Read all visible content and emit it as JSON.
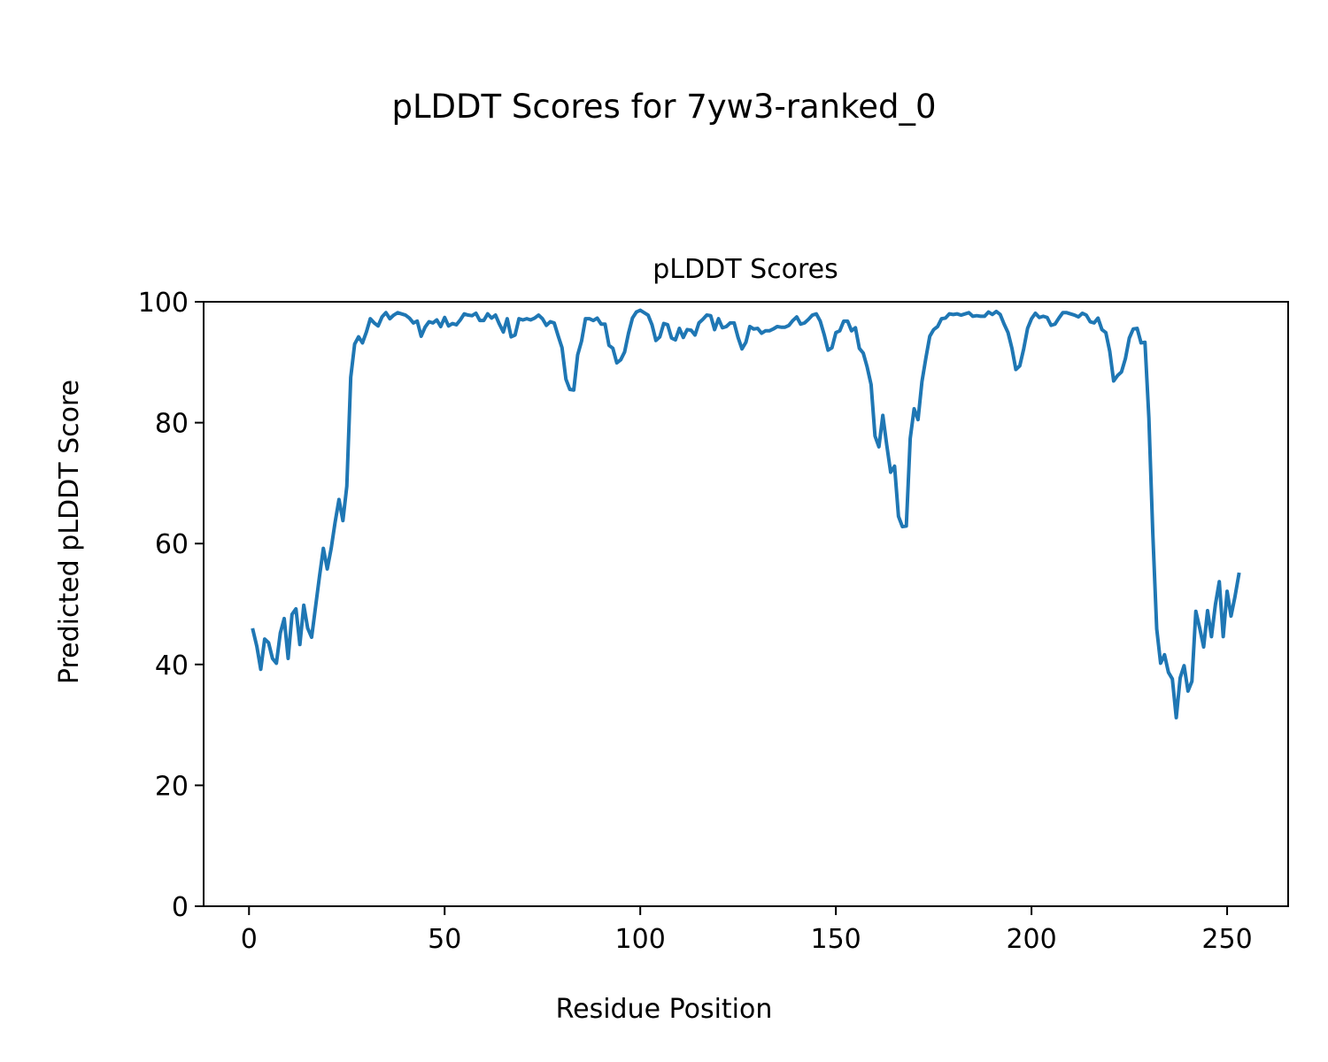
{
  "figure_title": "pLDDT Scores for 7yw3-ranked_0",
  "chart_data": {
    "type": "line",
    "title": "pLDDT Scores",
    "xlabel": "Residue Position",
    "ylabel": "Predicted pLDDT Score",
    "xlim": [
      -11.6,
      265.6
    ],
    "ylim": [
      0,
      100
    ],
    "xticks": [
      0,
      50,
      100,
      150,
      200,
      250
    ],
    "yticks": [
      0,
      20,
      40,
      60,
      80,
      100
    ],
    "grid": false,
    "line_color": "#1f77b4",
    "series": [
      {
        "x_start": 1,
        "values": [
          45.7,
          43.0,
          39.2,
          44.2,
          43.6,
          41.0,
          40.2,
          45.2,
          47.6,
          41.0,
          48.3,
          49.2,
          43.3,
          49.8,
          46.0,
          44.5,
          49.5,
          54.5,
          59.2,
          55.8,
          59.2,
          63.5,
          67.3,
          63.8,
          69.5,
          87.5,
          93.0,
          94.2,
          93.2,
          95.0,
          97.2,
          96.5,
          96.0,
          97.5,
          98.2,
          97.2,
          97.8,
          98.2,
          98.0,
          97.8,
          97.3,
          96.5,
          96.8,
          94.3,
          95.8,
          96.7,
          96.5,
          97.0,
          95.9,
          97.4,
          96.0,
          96.4,
          96.2,
          97.0,
          98.0,
          97.8,
          97.7,
          98.1,
          96.9,
          96.9,
          98.0,
          97.3,
          97.8,
          96.3,
          95.0,
          97.2,
          94.2,
          94.5,
          97.2,
          97.0,
          97.2,
          97.0,
          97.3,
          97.8,
          97.2,
          96.1,
          96.7,
          96.5,
          94.4,
          92.4,
          87.2,
          85.5,
          85.4,
          91.2,
          93.5,
          97.2,
          97.2,
          96.9,
          97.3,
          96.3,
          96.3,
          92.8,
          92.3,
          89.9,
          90.4,
          91.7,
          94.8,
          97.3,
          98.3,
          98.6,
          98.2,
          97.8,
          96.2,
          93.6,
          94.2,
          96.4,
          96.2,
          94.0,
          93.7,
          95.6,
          94.1,
          95.4,
          95.3,
          94.5,
          96.5,
          97.1,
          97.8,
          97.7,
          95.4,
          97.2,
          95.7,
          95.9,
          96.5,
          96.5,
          94.1,
          92.2,
          93.3,
          95.9,
          95.5,
          95.6,
          94.8,
          95.2,
          95.2,
          95.5,
          95.9,
          95.8,
          95.8,
          96.1,
          96.9,
          97.5,
          96.3,
          96.5,
          97.1,
          97.8,
          98.0,
          96.8,
          94.6,
          92.0,
          92.4,
          94.9,
          95.2,
          96.8,
          96.8,
          95.2,
          95.7,
          92.3,
          91.5,
          89.2,
          86.3,
          77.8,
          76.0,
          81.2,
          76.3,
          71.8,
          72.8,
          64.5,
          62.8,
          62.9,
          77.4,
          82.3,
          80.5,
          86.8,
          90.7,
          94.3,
          95.4,
          95.9,
          97.2,
          97.3,
          98.0,
          97.9,
          98.0,
          97.8,
          98.0,
          98.2,
          97.6,
          97.7,
          97.6,
          97.6,
          98.3,
          97.9,
          98.4,
          97.9,
          96.3,
          94.9,
          92.3,
          88.8,
          89.4,
          92.2,
          95.6,
          97.2,
          98.1,
          97.4,
          97.6,
          97.4,
          96.1,
          96.3,
          97.3,
          98.2,
          98.2,
          98.0,
          97.8,
          97.5,
          98.1,
          97.8,
          96.7,
          96.5,
          97.3,
          95.4,
          94.9,
          91.8,
          86.9,
          87.8,
          88.4,
          90.6,
          94.0,
          95.5,
          95.6,
          93.2,
          93.3,
          80.8,
          61.7,
          45.9,
          40.2,
          41.6,
          38.7,
          37.6,
          31.2,
          37.8,
          39.8,
          35.6,
          37.2,
          48.8,
          46.0,
          42.9,
          48.9,
          44.6,
          49.9,
          53.7,
          44.6,
          52.1,
          48.0,
          51.2,
          54.9
        ]
      }
    ]
  }
}
